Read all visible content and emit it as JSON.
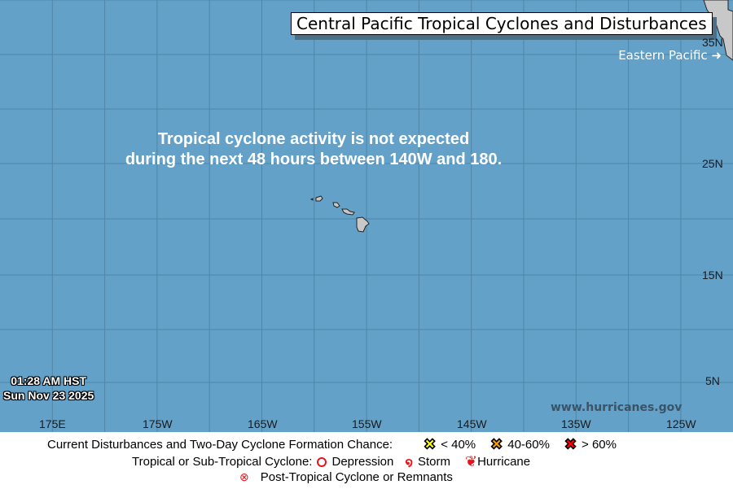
{
  "title": "Central Pacific Tropical Cyclones and Disturbances",
  "eastern_pacific_link": "Eastern Pacific ➜",
  "message": [
    "Tropical cyclone activity is not expected",
    "during the next 48 hours between 140W and 180."
  ],
  "timestamp": {
    "time": "01:28 AM HST",
    "date": "Sun Nov 23 2025"
  },
  "lon_labels": [
    "175E",
    "175W",
    "165W",
    "155W",
    "145W",
    "135W",
    "125W"
  ],
  "lat_labels": [
    "35N",
    "25N",
    "15N",
    "5N"
  ],
  "website": "www.hurricanes.gov",
  "colors": {
    "ocean": "#63a1c9",
    "land": "#c8c8c8",
    "low": "#ffff00",
    "medium": "#ff9900",
    "high": "#ff0000",
    "cyclone": "#e8141c"
  },
  "legend": {
    "disturbances_label": "Current Disturbances and Two-Day Cyclone Formation Chance:",
    "low": "< 40%",
    "medium": "40-60%",
    "high": "> 60%",
    "cyclone_label": "Tropical or Sub-Tropical Cyclone:",
    "depression": "Depression",
    "storm": "Storm",
    "hurricane": "Hurricane",
    "post_tropical": "Post-Tropical Cyclone or Remnants"
  }
}
